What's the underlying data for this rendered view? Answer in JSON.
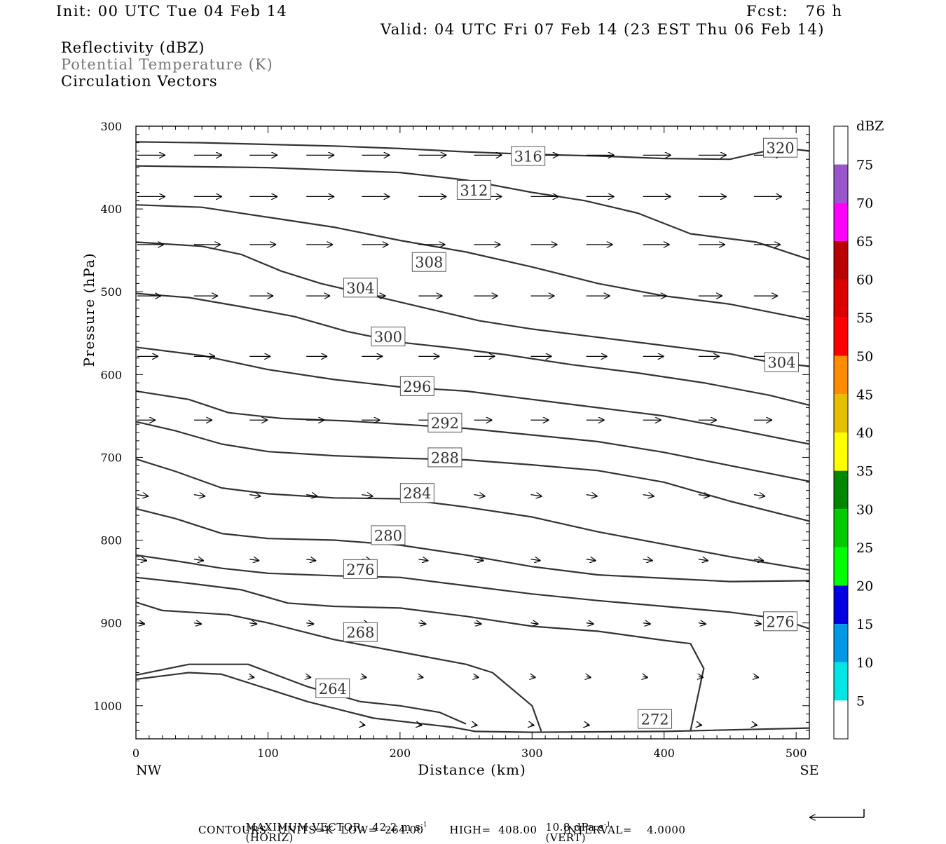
{
  "header": {
    "init": "Init: 00 UTC Tue 04 Feb 14",
    "fcst": "Fcst:   76 h",
    "valid": "Valid: 04 UTC Fri 07 Feb 14 (23 EST Thu 06 Feb 14)"
  },
  "fields": {
    "reflectivity": "Reflectivity (dBZ)",
    "potential_temperature": "Potential Temperature (K)",
    "circulation": "Circulation Vectors"
  },
  "footer": {
    "maximum_vector": "MAXIMUM VECTOR:  42.2 m s",
    "horiz": "(HORIZ)",
    "vert_value": "10.8 dPa s",
    "vert": "(VERT)",
    "exponent": "-1",
    "contours": "CONTOURS:  UNITS=K  LOW=  264.00       HIGH=  408.00       INTERVAL=    4.0000"
  },
  "chart_data": {
    "type": "cross-section",
    "xlabel": "Distance (km)",
    "ylabel": "Pressure (hPa)",
    "x_range": [
      0,
      510
    ],
    "y_range": [
      300,
      1040
    ],
    "x_ticks": [
      0,
      100,
      200,
      300,
      400,
      500
    ],
    "y_ticks": [
      300,
      400,
      500,
      600,
      700,
      800,
      900,
      1000
    ],
    "x_end_labels": {
      "left": "NW",
      "right": "SE"
    },
    "colorbar": {
      "label": "dBZ",
      "levels": [
        5,
        10,
        15,
        20,
        25,
        30,
        35,
        40,
        45,
        50,
        55,
        60,
        65,
        70,
        75
      ],
      "colors": [
        "#00e5e5",
        "#0099e6",
        "#0000e0",
        "#00ff00",
        "#00cc00",
        "#008800",
        "#ffff00",
        "#e6bf00",
        "#ff8c00",
        "#ff0000",
        "#dd0000",
        "#bb0000",
        "#ff00ff",
        "#9955cc"
      ]
    },
    "contour_labels": [
      {
        "value": "320",
        "x": 488,
        "p": 326
      },
      {
        "value": "316",
        "x": 297,
        "p": 336
      },
      {
        "value": "312",
        "x": 256,
        "p": 377
      },
      {
        "value": "308",
        "x": 222,
        "p": 464
      },
      {
        "value": "304",
        "x": 170,
        "p": 495
      },
      {
        "value": "304",
        "x": 489,
        "p": 585
      },
      {
        "value": "300",
        "x": 191,
        "p": 554
      },
      {
        "value": "296",
        "x": 213,
        "p": 614
      },
      {
        "value": "292",
        "x": 234,
        "p": 658
      },
      {
        "value": "288",
        "x": 234,
        "p": 700
      },
      {
        "value": "284",
        "x": 213,
        "p": 743
      },
      {
        "value": "280",
        "x": 191,
        "p": 794
      },
      {
        "value": "276",
        "x": 170,
        "p": 835
      },
      {
        "value": "276",
        "x": 488,
        "p": 898
      },
      {
        "value": "268",
        "x": 170,
        "p": 911
      },
      {
        "value": "264",
        "x": 149,
        "p": 979
      },
      {
        "value": "272",
        "x": 393,
        "p": 1016
      }
    ],
    "contours": [
      {
        "points": [
          [
            0,
            319
          ],
          [
            50,
            320
          ],
          [
            100,
            322
          ],
          [
            150,
            324
          ],
          [
            200,
            327
          ],
          [
            250,
            331
          ],
          [
            300,
            334
          ],
          [
            350,
            336
          ],
          [
            400,
            339
          ],
          [
            450,
            340
          ],
          [
            488,
            326
          ],
          [
            510,
            330
          ]
        ]
      },
      {
        "points": [
          [
            0,
            348
          ],
          [
            100,
            350
          ],
          [
            200,
            356
          ],
          [
            250,
            365
          ],
          [
            300,
            380
          ],
          [
            340,
            390
          ],
          [
            380,
            405
          ],
          [
            420,
            430
          ],
          [
            470,
            440
          ],
          [
            510,
            461
          ]
        ]
      },
      {
        "points": [
          [
            0,
            395
          ],
          [
            50,
            398
          ],
          [
            100,
            410
          ],
          [
            150,
            422
          ],
          [
            200,
            438
          ],
          [
            250,
            452
          ],
          [
            300,
            470
          ],
          [
            350,
            490
          ],
          [
            400,
            505
          ],
          [
            450,
            515
          ],
          [
            510,
            534
          ]
        ]
      },
      {
        "points": [
          [
            0,
            440
          ],
          [
            50,
            445
          ],
          [
            80,
            455
          ],
          [
            110,
            475
          ],
          [
            140,
            490
          ],
          [
            180,
            505
          ],
          [
            220,
            520
          ],
          [
            260,
            535
          ],
          [
            300,
            545
          ],
          [
            350,
            555
          ],
          [
            400,
            565
          ],
          [
            450,
            575
          ],
          [
            480,
            585
          ],
          [
            510,
            590
          ]
        ]
      },
      {
        "points": [
          [
            0,
            502
          ],
          [
            40,
            507
          ],
          [
            80,
            518
          ],
          [
            120,
            530
          ],
          [
            160,
            548
          ],
          [
            200,
            561
          ],
          [
            240,
            568
          ],
          [
            280,
            576
          ],
          [
            330,
            588
          ],
          [
            380,
            598
          ],
          [
            430,
            610
          ],
          [
            480,
            625
          ],
          [
            510,
            637
          ]
        ]
      },
      {
        "points": [
          [
            0,
            567
          ],
          [
            50,
            577
          ],
          [
            100,
            594
          ],
          [
            150,
            606
          ],
          [
            200,
            615
          ],
          [
            250,
            620
          ],
          [
            300,
            630
          ],
          [
            350,
            640
          ],
          [
            400,
            650
          ],
          [
            450,
            665
          ],
          [
            510,
            684
          ]
        ]
      },
      {
        "points": [
          [
            0,
            620
          ],
          [
            40,
            630
          ],
          [
            70,
            646
          ],
          [
            110,
            653
          ],
          [
            160,
            656
          ],
          [
            200,
            660
          ],
          [
            250,
            665
          ],
          [
            300,
            673
          ],
          [
            350,
            681
          ],
          [
            400,
            694
          ],
          [
            450,
            710
          ],
          [
            510,
            729
          ]
        ]
      },
      {
        "points": [
          [
            0,
            657
          ],
          [
            30,
            668
          ],
          [
            65,
            684
          ],
          [
            100,
            693
          ],
          [
            150,
            698
          ],
          [
            200,
            701
          ],
          [
            250,
            703
          ],
          [
            300,
            709
          ],
          [
            350,
            716
          ],
          [
            400,
            730
          ],
          [
            450,
            753
          ],
          [
            510,
            777
          ]
        ]
      },
      {
        "points": [
          [
            0,
            702
          ],
          [
            30,
            717
          ],
          [
            65,
            737
          ],
          [
            100,
            744
          ],
          [
            150,
            749
          ],
          [
            200,
            750
          ],
          [
            250,
            760
          ],
          [
            300,
            772
          ],
          [
            350,
            790
          ],
          [
            400,
            805
          ],
          [
            450,
            820
          ],
          [
            510,
            836
          ]
        ]
      },
      {
        "points": [
          [
            0,
            762
          ],
          [
            30,
            774
          ],
          [
            65,
            792
          ],
          [
            100,
            798
          ],
          [
            150,
            800
          ],
          [
            200,
            806
          ],
          [
            250,
            818
          ],
          [
            300,
            832
          ],
          [
            350,
            842
          ],
          [
            400,
            846
          ],
          [
            450,
            850
          ],
          [
            510,
            849
          ]
        ]
      },
      {
        "points": [
          [
            0,
            818
          ],
          [
            30,
            825
          ],
          [
            65,
            834
          ],
          [
            100,
            840
          ],
          [
            150,
            843
          ],
          [
            200,
            845
          ],
          [
            250,
            855
          ],
          [
            300,
            865
          ],
          [
            350,
            873
          ],
          [
            400,
            880
          ],
          [
            450,
            887
          ],
          [
            488,
            895
          ],
          [
            510,
            907
          ]
        ]
      },
      {
        "points": [
          [
            0,
            845
          ],
          [
            40,
            852
          ],
          [
            80,
            860
          ],
          [
            115,
            876
          ],
          [
            150,
            880
          ],
          [
            200,
            882
          ],
          [
            250,
            892
          ],
          [
            300,
            904
          ],
          [
            350,
            910
          ],
          [
            400,
            921
          ],
          [
            420,
            925
          ],
          [
            430,
            955
          ],
          [
            420,
            1030
          ]
        ]
      },
      {
        "points": [
          [
            0,
            875
          ],
          [
            20,
            885
          ],
          [
            70,
            890
          ],
          [
            100,
            900
          ],
          [
            150,
            920
          ],
          [
            200,
            935
          ],
          [
            250,
            950
          ],
          [
            270,
            960
          ],
          [
            300,
            1000
          ],
          [
            307,
            1031
          ]
        ]
      },
      {
        "points": [
          [
            0,
            963
          ],
          [
            40,
            950
          ],
          [
            85,
            950
          ],
          [
            130,
            977
          ],
          [
            170,
            995
          ],
          [
            200,
            1000
          ],
          [
            230,
            1008
          ],
          [
            250,
            1022
          ]
        ]
      },
      {
        "points": [
          [
            0,
            968
          ],
          [
            40,
            960
          ],
          [
            65,
            962
          ],
          [
            130,
            995
          ],
          [
            180,
            1015
          ],
          [
            240,
            1026
          ],
          [
            257,
            1031
          ],
          [
            300,
            1032
          ],
          [
            400,
            1031
          ],
          [
            510,
            1027
          ]
        ]
      }
    ],
    "vectors": [
      {
        "p": 335,
        "y_offset": 0,
        "x": [
          0,
          43,
          85,
          128,
          170,
          213,
          255,
          298,
          340,
          383,
          425,
          467
        ],
        "lens": [
          40,
          40,
          40,
          40,
          40,
          40,
          40,
          40,
          40,
          40,
          40,
          40
        ]
      },
      {
        "p": 385,
        "y_offset": 0,
        "x": [
          0,
          43,
          85,
          128,
          170,
          213,
          255,
          298,
          340,
          383,
          425,
          467
        ],
        "lens": [
          40,
          40,
          40,
          40,
          40,
          40,
          40,
          40,
          40,
          40,
          40,
          40
        ]
      },
      {
        "p": 443,
        "y_offset": 0,
        "x": [
          0,
          43,
          85,
          128,
          170,
          213,
          255,
          298,
          340,
          383,
          425,
          467
        ],
        "lens": [
          38,
          38,
          38,
          38,
          38,
          38,
          38,
          38,
          38,
          38,
          38,
          38
        ]
      },
      {
        "p": 505,
        "y_offset": 0,
        "x": [
          0,
          43,
          85,
          128,
          170,
          213,
          255,
          298,
          340,
          383,
          425,
          467
        ],
        "lens": [
          34,
          34,
          34,
          34,
          34,
          34,
          34,
          34,
          34,
          34,
          34,
          34
        ]
      },
      {
        "p": 578,
        "y_offset": 0,
        "x": [
          0,
          43,
          85,
          128,
          170,
          213,
          255,
          298,
          340,
          383,
          425,
          467
        ],
        "lens": [
          30,
          30,
          30,
          30,
          30,
          30,
          30,
          30,
          30,
          30,
          30,
          30
        ]
      },
      {
        "p": 655,
        "y_offset": 0,
        "x": [
          0,
          43,
          85,
          128,
          170,
          213,
          255,
          298,
          340,
          383,
          425,
          467
        ],
        "lens": [
          26,
          26,
          26,
          26,
          26,
          26,
          26,
          26,
          26,
          26,
          26,
          26
        ]
      },
      {
        "p": 745,
        "y_offset": 0,
        "x": [
          0,
          43,
          85,
          128,
          170,
          213,
          255,
          298,
          340,
          383,
          425,
          467
        ],
        "lens": [
          16,
          16,
          16,
          16,
          16,
          16,
          16,
          16,
          16,
          16,
          16,
          16
        ]
      },
      {
        "p": 823,
        "y_offset": 0,
        "x": [
          0,
          43,
          85,
          128,
          170,
          213,
          255,
          298,
          340,
          383,
          425,
          467
        ],
        "lens": [
          14,
          14,
          14,
          14,
          14,
          14,
          14,
          14,
          14,
          14,
          14,
          14
        ]
      },
      {
        "p": 900,
        "y_offset": 0,
        "x": [
          0,
          43,
          85,
          128,
          170,
          213,
          255,
          298,
          340,
          383,
          425,
          467
        ],
        "lens": [
          11,
          11,
          11,
          11,
          11,
          11,
          11,
          11,
          11,
          11,
          11,
          11
        ]
      },
      {
        "p": 965,
        "y_offset": 0,
        "x": [
          85,
          128,
          170,
          213,
          255,
          298,
          340,
          383,
          425,
          467
        ],
        "lens": [
          7,
          7,
          7,
          7,
          7,
          7,
          7,
          7,
          7,
          7
        ]
      },
      {
        "p": 1023,
        "y_offset": 0,
        "x": [
          170,
          213,
          255,
          298,
          340,
          383,
          425,
          467
        ],
        "lens": [
          5,
          5,
          5,
          5,
          5,
          5,
          5,
          5
        ]
      }
    ]
  }
}
